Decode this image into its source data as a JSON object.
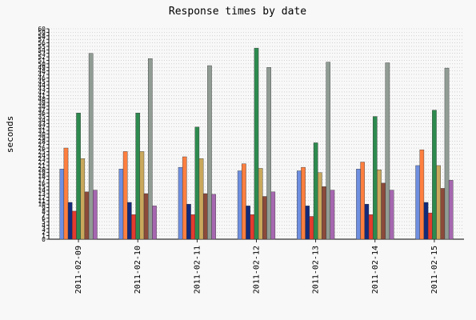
{
  "chart_data": {
    "type": "bar",
    "title": "Response times by date",
    "ylabel": "seconds",
    "xlabel": "",
    "ylim": [
      0,
      60
    ],
    "ytick_step": 1,
    "grid": true,
    "legend": "none",
    "categories": [
      "2011-02-09",
      "2011-02-10",
      "2011-02-11",
      "2011-02-12",
      "2011-02-13",
      "2011-02-14",
      "2011-02-15"
    ],
    "series": [
      {
        "color": "#6f8fe0",
        "values": [
          20,
          20,
          20.5,
          19.5,
          19.5,
          20,
          21
        ]
      },
      {
        "color": "#ff7f3f",
        "values": [
          26,
          25,
          23.5,
          21.5,
          20.5,
          22,
          25.5
        ]
      },
      {
        "color": "#132a7a",
        "values": [
          10.5,
          10.5,
          10,
          9.5,
          9.5,
          10,
          10.5
        ]
      },
      {
        "color": "#e43a2f",
        "values": [
          8,
          7,
          7,
          7,
          6.5,
          7,
          7.5
        ]
      },
      {
        "color": "#2d8a4f",
        "values": [
          36,
          36,
          32,
          54.5,
          27.5,
          35,
          36.8
        ]
      },
      {
        "color": "#c9a85c",
        "values": [
          23,
          25,
          23,
          20.2,
          19,
          19.8,
          21
        ]
      },
      {
        "color": "#8b4a3a",
        "values": [
          13.5,
          13,
          13,
          12.2,
          15,
          16,
          14.5
        ]
      },
      {
        "color": "#909c94",
        "values": [
          53,
          51.5,
          49.5,
          49,
          50.5,
          50.3,
          48.8
        ]
      },
      {
        "color": "#a667b0",
        "values": [
          14,
          9.5,
          12.8,
          13.5,
          14,
          14,
          16.8
        ]
      }
    ]
  }
}
